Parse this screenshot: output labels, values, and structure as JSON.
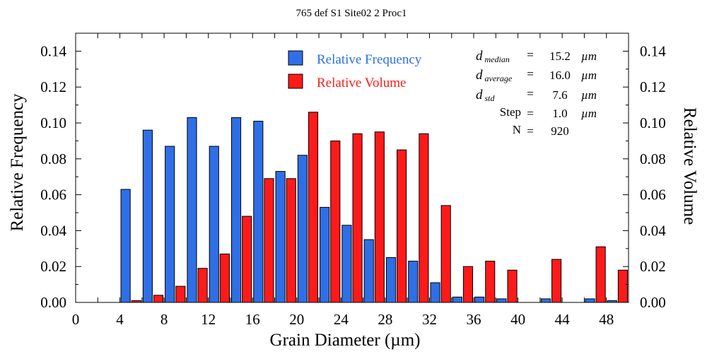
{
  "chart_data": {
    "type": "bar",
    "title": "765 def S1 Site02 2 Proc1",
    "xlabel": "Grain Diameter (µm)",
    "ylabel_left": "Relative Frequency",
    "ylabel_right": "Relative Volume",
    "xlim": [
      0,
      50
    ],
    "ylim": [
      0,
      0.15
    ],
    "x_ticks": [
      0,
      4,
      8,
      12,
      16,
      20,
      24,
      28,
      32,
      36,
      40,
      44,
      48
    ],
    "x_tick_labels": [
      "0",
      "4",
      "8",
      "12",
      "16",
      "20",
      "24",
      "28",
      "32",
      "36",
      "40",
      "44",
      "48"
    ],
    "y_ticks": [
      0,
      0.02,
      0.04,
      0.06,
      0.08,
      0.1,
      0.12,
      0.14
    ],
    "y_tick_labels": [
      "0.00",
      "0.02",
      "0.04",
      "0.06",
      "0.08",
      "0.10",
      "0.12",
      "0.14"
    ],
    "bin_width": 2,
    "bin_centers": [
      1,
      3,
      5,
      7,
      9,
      11,
      13,
      15,
      17,
      19,
      21,
      23,
      25,
      27,
      29,
      31,
      33,
      35,
      37,
      39,
      41,
      43,
      45,
      47,
      49
    ],
    "series": [
      {
        "name": "Relative Frequency",
        "color": "#2f6fe6",
        "values": [
          0,
          0,
          0.063,
          0.096,
          0.087,
          0.103,
          0.087,
          0.103,
          0.101,
          0.073,
          0.082,
          0.053,
          0.043,
          0.035,
          0.025,
          0.023,
          0.011,
          0.003,
          0.003,
          0.002,
          0,
          0.002,
          0,
          0.002,
          0.001
        ]
      },
      {
        "name": "Relative Volume",
        "color": "#ff1a1a",
        "values": [
          0,
          0,
          0.001,
          0.004,
          0.009,
          0.019,
          0.027,
          0.048,
          0.069,
          0.069,
          0.106,
          0.09,
          0.094,
          0.095,
          0.085,
          0.094,
          0.054,
          0.02,
          0.023,
          0.018,
          0,
          0.024,
          0,
          0.031,
          0.018
        ]
      }
    ],
    "legend_position": "top-center",
    "stats": [
      {
        "symbol": "d",
        "sub": "median",
        "value": "15.2",
        "unit": "µm"
      },
      {
        "symbol": "d",
        "sub": "average",
        "value": "16.0",
        "unit": "µm"
      },
      {
        "symbol": "d",
        "sub": "std",
        "value": "7.6",
        "unit": "µm"
      },
      {
        "label": "Step",
        "value": "1.0",
        "unit": "µm"
      },
      {
        "label": "N",
        "value": "920",
        "unit": ""
      }
    ],
    "equals": "="
  }
}
